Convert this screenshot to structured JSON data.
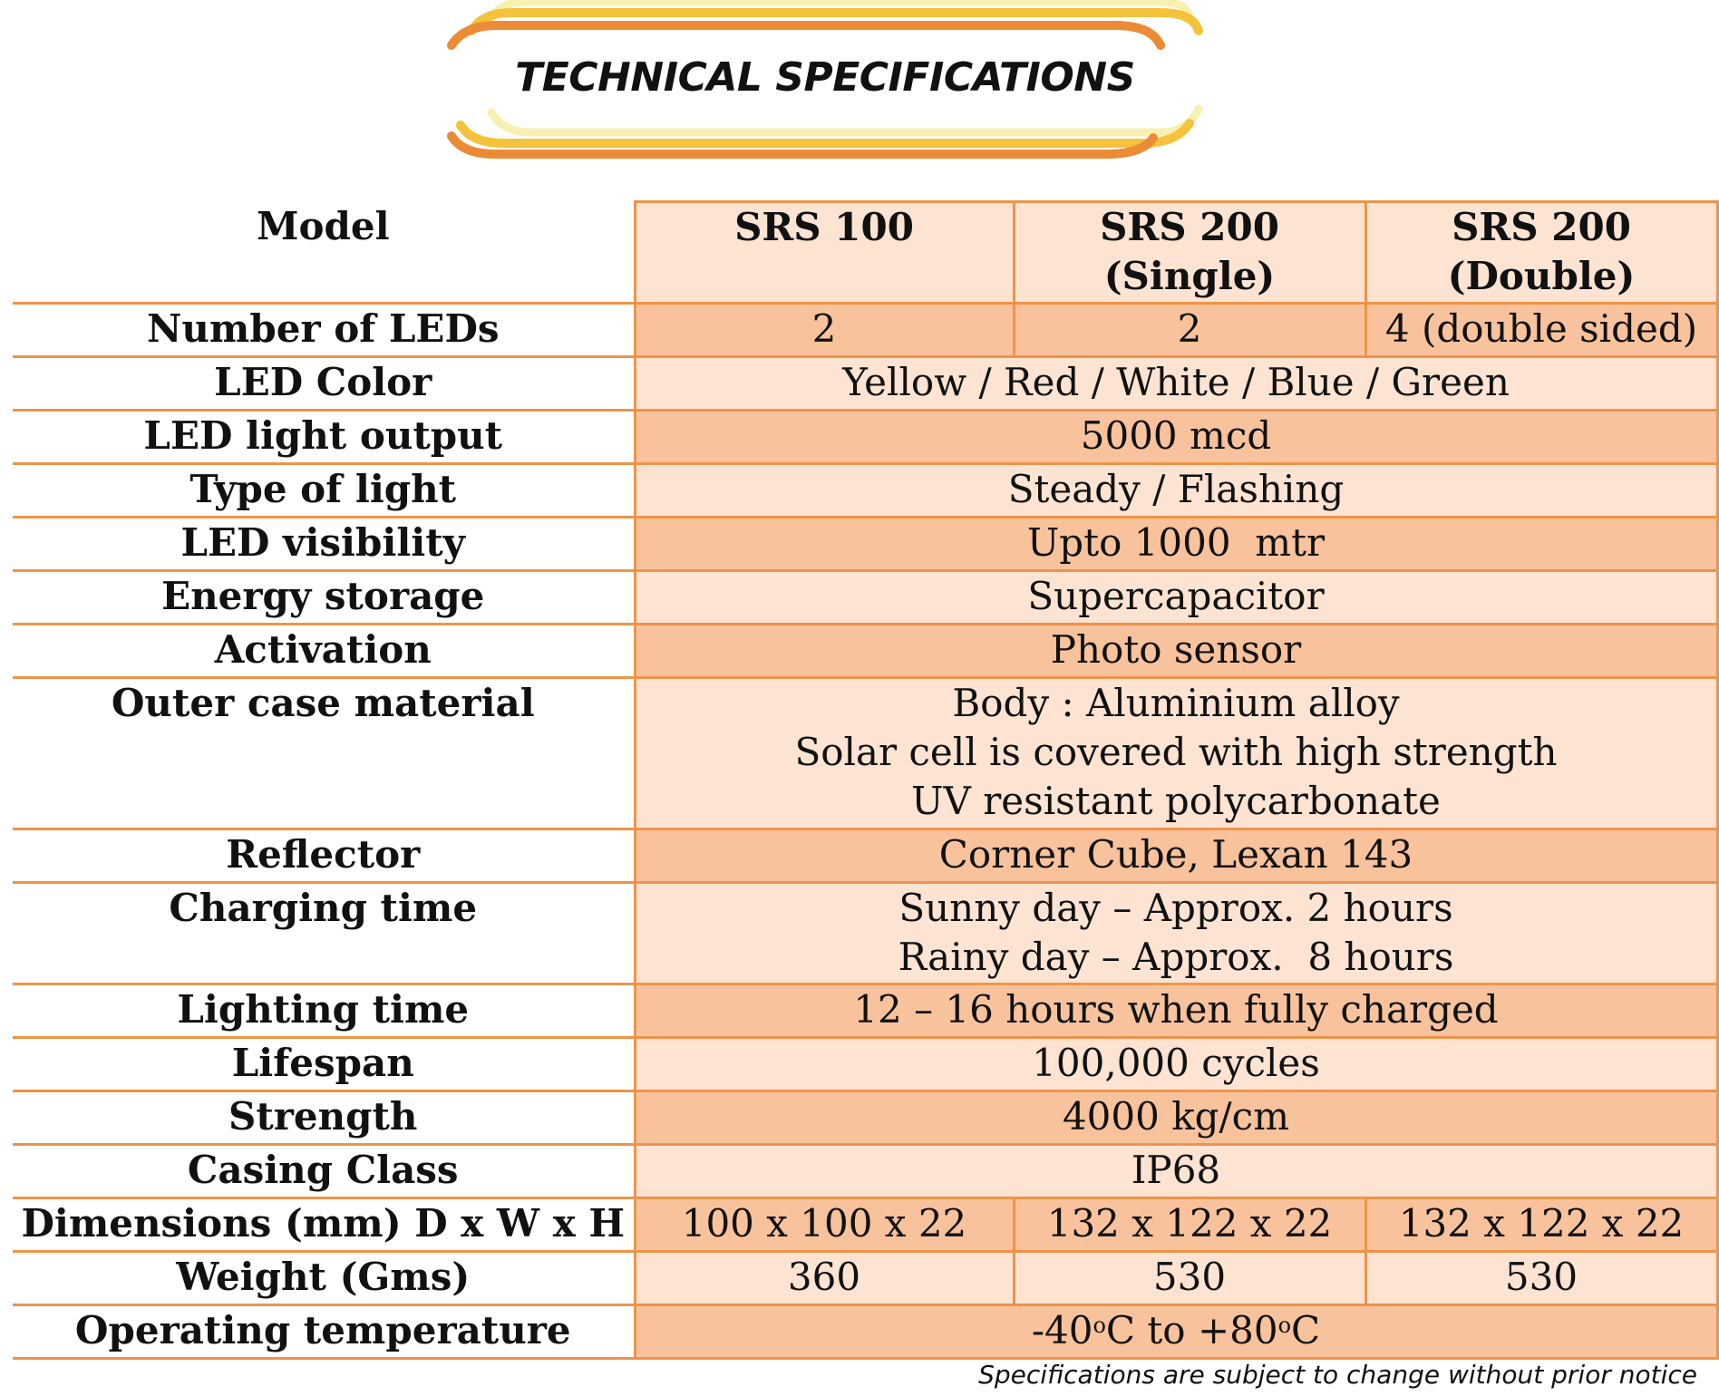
{
  "banner": {
    "title": "TECHNICAL SPECIFICATIONS"
  },
  "table": {
    "header": {
      "label": "Model",
      "models": [
        "SRS 100",
        "SRS 200 (Single)",
        "SRS 200 (Double)"
      ]
    },
    "rows": {
      "leds": {
        "label": "Number of LEDs",
        "values": [
          "2",
          "2",
          "4 (double sided)"
        ]
      },
      "color": {
        "label": "LED Color",
        "value": "Yellow / Red / White / Blue / Green"
      },
      "output": {
        "label": "LED light output",
        "value": "5000 mcd"
      },
      "type": {
        "label": "Type of light",
        "value": "Steady / Flashing"
      },
      "visibility": {
        "label": "LED visibility",
        "value": "Upto 1000  mtr"
      },
      "storage": {
        "label": "Energy storage",
        "value": "Supercapacitor"
      },
      "activation": {
        "label": "Activation",
        "value": "Photo sensor"
      },
      "outer_case": {
        "label": "Outer case material",
        "line1": "Body : Aluminium alloy",
        "line2": "Solar cell is covered with high strength UV resistant polycarbonate"
      },
      "reflector": {
        "label": "Reflector",
        "value": "Corner Cube, Lexan 143"
      },
      "charging": {
        "label": "Charging time",
        "line1": "Sunny day – Approx. 2 hours",
        "line2": "Rainy day – Approx.  8 hours"
      },
      "lighting": {
        "label": "Lighting time",
        "value": "12 – 16 hours when fully charged"
      },
      "lifespan": {
        "label": "Lifespan",
        "value": "100,000 cycles"
      },
      "strength": {
        "label": "Strength",
        "value": "4000 kg/cm"
      },
      "casing": {
        "label": "Casing Class",
        "value": "IP68"
      },
      "dimensions": {
        "label": "Dimensions (mm) D x W x H",
        "values": [
          "100 x 100 x 22",
          "132 x 122 x 22",
          "132 x 122 x 22"
        ]
      },
      "weight": {
        "label": "Weight (Gms)",
        "values": [
          "360",
          "530",
          "530"
        ]
      },
      "temperature": {
        "label": "Operating temperature",
        "low": "-40",
        "high": "+80",
        "degree": "o",
        "unit": "C",
        "to": "to"
      }
    }
  },
  "footnote": "Specifications are subject to change without prior notice"
}
